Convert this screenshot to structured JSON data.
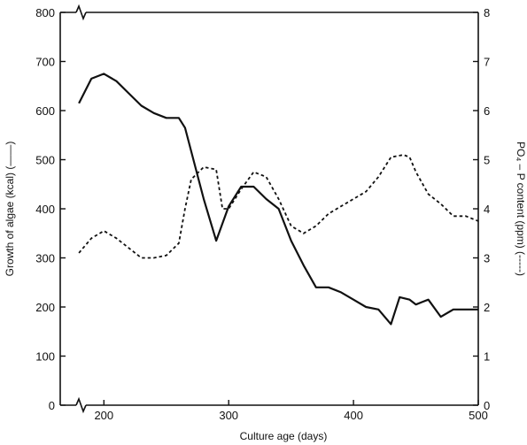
{
  "chart_data": {
    "type": "line",
    "xlabel": "Culture age (days)",
    "ylabel_left": "Growth of algae (kcal) (——)",
    "ylabel_right": "PO₄ – P content (ppm) (-----)",
    "xlim": [
      165,
      500
    ],
    "ylim_left": [
      0,
      800
    ],
    "ylim_right": [
      0,
      8
    ],
    "axis_break": true,
    "x_ticks": [
      200,
      300,
      400,
      500
    ],
    "y_left_ticks": [
      0,
      100,
      200,
      300,
      400,
      500,
      600,
      700,
      800
    ],
    "y_right_ticks": [
      0,
      1,
      2,
      3,
      4,
      5,
      6,
      7,
      8
    ],
    "series": [
      {
        "axis": "left",
        "style": "solid",
        "x": [
          180,
          190,
          200,
          210,
          220,
          230,
          240,
          250,
          260,
          265,
          280,
          290,
          300,
          310,
          320,
          330,
          340,
          350,
          360,
          370,
          380,
          390,
          400,
          410,
          420,
          430,
          437,
          445,
          450,
          455,
          460,
          470,
          480,
          490,
          500
        ],
        "y": [
          615,
          665,
          675,
          660,
          635,
          610,
          595,
          585,
          585,
          565,
          420,
          335,
          405,
          445,
          445,
          420,
          400,
          335,
          285,
          240,
          240,
          230,
          215,
          200,
          195,
          165,
          220,
          215,
          205,
          210,
          215,
          180,
          195,
          195,
          195
        ]
      },
      {
        "axis": "right",
        "style": "dashed",
        "x": [
          180,
          190,
          200,
          210,
          220,
          230,
          240,
          250,
          260,
          265,
          270,
          280,
          290,
          295,
          300,
          310,
          320,
          330,
          340,
          350,
          360,
          370,
          380,
          390,
          400,
          410,
          420,
          430,
          440,
          445,
          450,
          460,
          470,
          480,
          490,
          500
        ],
        "y": [
          3.1,
          3.4,
          3.55,
          3.4,
          3.2,
          3.0,
          3.0,
          3.05,
          3.3,
          4.0,
          4.6,
          4.85,
          4.8,
          4.0,
          4.0,
          4.4,
          4.75,
          4.65,
          4.2,
          3.65,
          3.5,
          3.65,
          3.9,
          4.05,
          4.2,
          4.35,
          4.65,
          5.05,
          5.1,
          5.05,
          4.75,
          4.3,
          4.1,
          3.85,
          3.85,
          3.75
        ]
      }
    ]
  }
}
